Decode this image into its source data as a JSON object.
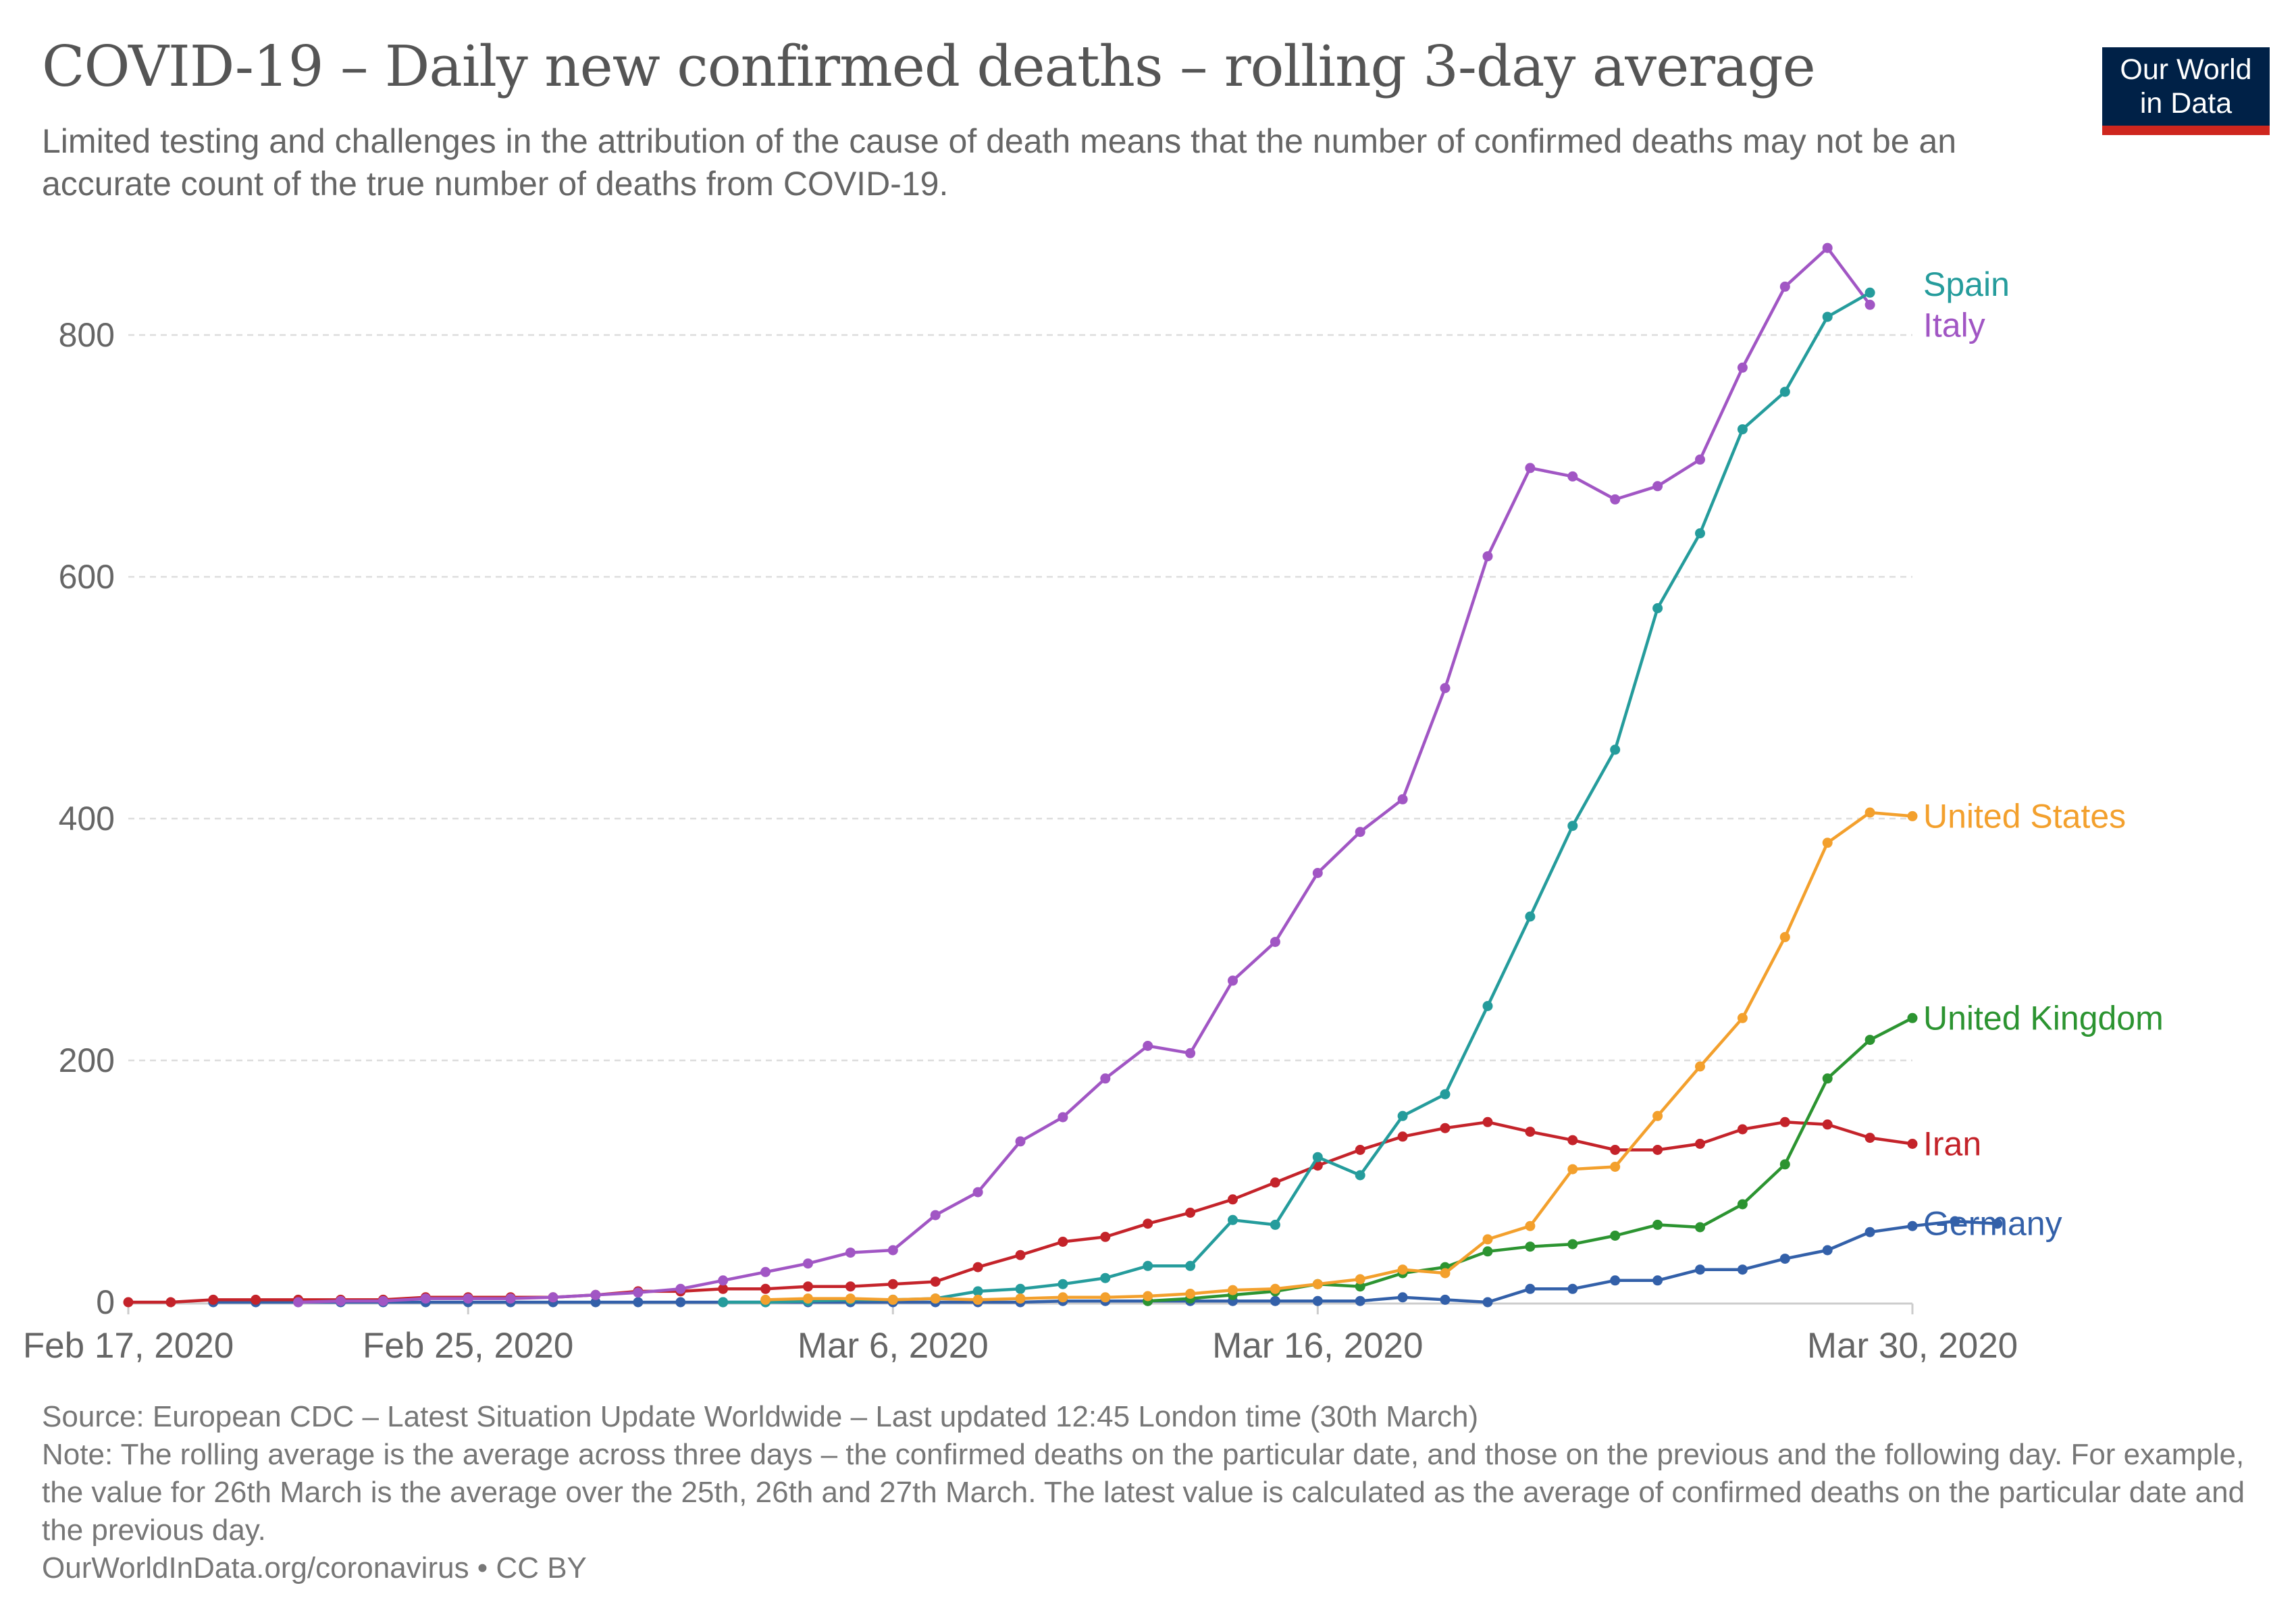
{
  "header": {
    "title": "COVID-19 – Daily new confirmed deaths – rolling 3-day average",
    "subtitle": "Limited testing and challenges in the attribution of the cause of death means that the number of confirmed deaths may not be an accurate count of the true number of deaths from COVID-19."
  },
  "logo": {
    "line1": "Our World",
    "line2": "in Data",
    "bg_color": "#002147",
    "accent_color": "#ce261e"
  },
  "footer": {
    "source": "Source: European CDC – Latest Situation Update Worldwide – Last updated 12:45 London time (30th March)",
    "note": "Note: The rolling average is the average across three days – the confirmed deaths on the particular date, and those on the previous and the following day. For example, the value for 26th March is the average over the 25th, 26th and 27th March. The latest value is calculated as the average of confirmed deaths on the particular date and the previous day.",
    "link": "OurWorldInData.org/coronavirus • CC BY"
  },
  "chart_data": {
    "type": "line",
    "x_start": "2020-02-17",
    "x_end": "2020-03-30",
    "x_ticks": [
      {
        "date": "2020-02-17",
        "label": "Feb 17, 2020"
      },
      {
        "date": "2020-02-25",
        "label": "Feb 25, 2020"
      },
      {
        "date": "2020-03-06",
        "label": "Mar 6, 2020"
      },
      {
        "date": "2020-03-16",
        "label": "Mar 16, 2020"
      },
      {
        "date": "2020-03-30",
        "label": "Mar 30, 2020"
      }
    ],
    "y_ticks": [
      0,
      200,
      400,
      600,
      800
    ],
    "ylim": [
      0,
      870
    ],
    "grid": true,
    "series": [
      {
        "name": "Germany",
        "color": "#3360a9",
        "points": [
          [
            "2020-02-19",
            0
          ],
          [
            "2020-02-20",
            0
          ],
          [
            "2020-02-21",
            0
          ],
          [
            "2020-02-22",
            0
          ],
          [
            "2020-02-23",
            0
          ],
          [
            "2020-02-24",
            0
          ],
          [
            "2020-02-25",
            0
          ],
          [
            "2020-02-26",
            0
          ],
          [
            "2020-02-27",
            0
          ],
          [
            "2020-02-28",
            0
          ],
          [
            "2020-02-29",
            0
          ],
          [
            "2020-03-01",
            0
          ],
          [
            "2020-03-02",
            0
          ],
          [
            "2020-03-03",
            0
          ],
          [
            "2020-03-04",
            0
          ],
          [
            "2020-03-05",
            0
          ],
          [
            "2020-03-06",
            0
          ],
          [
            "2020-03-07",
            0
          ],
          [
            "2020-03-08",
            0
          ],
          [
            "2020-03-09",
            0
          ],
          [
            "2020-03-10",
            1
          ],
          [
            "2020-03-11",
            1
          ],
          [
            "2020-03-12",
            1
          ],
          [
            "2020-03-13",
            1
          ],
          [
            "2020-03-14",
            1
          ],
          [
            "2020-03-15",
            1
          ],
          [
            "2020-03-16",
            1
          ],
          [
            "2020-03-17",
            1
          ],
          [
            "2020-03-18",
            4
          ],
          [
            "2020-03-19",
            2
          ],
          [
            "2020-03-20",
            0
          ],
          [
            "2020-03-21",
            11
          ],
          [
            "2020-03-22",
            11
          ],
          [
            "2020-03-23",
            18
          ],
          [
            "2020-03-24",
            18
          ],
          [
            "2020-03-25",
            27
          ],
          [
            "2020-03-26",
            27
          ],
          [
            "2020-03-27",
            36
          ],
          [
            "2020-03-28",
            43
          ],
          [
            "2020-03-29",
            58
          ],
          [
            "2020-03-30",
            63
          ],
          [
            "2020-03-31",
            67
          ],
          [
            "2020-04-01",
            65
          ]
        ]
      },
      {
        "name": "Iran",
        "color": "#c4232a",
        "points": [
          [
            "2020-02-17",
            0
          ],
          [
            "2020-02-18",
            0
          ],
          [
            "2020-02-19",
            2
          ],
          [
            "2020-02-20",
            2
          ],
          [
            "2020-02-21",
            2
          ],
          [
            "2020-02-22",
            2
          ],
          [
            "2020-02-23",
            2
          ],
          [
            "2020-02-24",
            4
          ],
          [
            "2020-02-25",
            4
          ],
          [
            "2020-02-26",
            4
          ],
          [
            "2020-02-27",
            4
          ],
          [
            "2020-02-28",
            6
          ],
          [
            "2020-02-29",
            9
          ],
          [
            "2020-03-01",
            9
          ],
          [
            "2020-03-02",
            11
          ],
          [
            "2020-03-03",
            11
          ],
          [
            "2020-03-04",
            13
          ],
          [
            "2020-03-05",
            13
          ],
          [
            "2020-03-06",
            15
          ],
          [
            "2020-03-07",
            17
          ],
          [
            "2020-03-08",
            29
          ],
          [
            "2020-03-09",
            39
          ],
          [
            "2020-03-10",
            50
          ],
          [
            "2020-03-11",
            54
          ],
          [
            "2020-03-12",
            65
          ],
          [
            "2020-03-13",
            74
          ],
          [
            "2020-03-14",
            85
          ],
          [
            "2020-03-15",
            99
          ],
          [
            "2020-03-16",
            113
          ],
          [
            "2020-03-17",
            126
          ],
          [
            "2020-03-18",
            137
          ],
          [
            "2020-03-19",
            144
          ],
          [
            "2020-03-20",
            149
          ],
          [
            "2020-03-21",
            141
          ],
          [
            "2020-03-22",
            134
          ],
          [
            "2020-03-23",
            126
          ],
          [
            "2020-03-24",
            126
          ],
          [
            "2020-03-25",
            131
          ],
          [
            "2020-03-26",
            143
          ],
          [
            "2020-03-27",
            149
          ],
          [
            "2020-03-28",
            147
          ],
          [
            "2020-03-29",
            136
          ],
          [
            "2020-03-30",
            131
          ]
        ]
      },
      {
        "name": "Italy",
        "color": "#a156c4",
        "points": [
          [
            "2020-02-21",
            0
          ],
          [
            "2020-02-22",
            1
          ],
          [
            "2020-02-23",
            1
          ],
          [
            "2020-02-24",
            3
          ],
          [
            "2020-02-25",
            3
          ],
          [
            "2020-02-26",
            3
          ],
          [
            "2020-02-27",
            4
          ],
          [
            "2020-02-28",
            6
          ],
          [
            "2020-02-29",
            8
          ],
          [
            "2020-03-01",
            11
          ],
          [
            "2020-03-02",
            18
          ],
          [
            "2020-03-03",
            25
          ],
          [
            "2020-03-04",
            32
          ],
          [
            "2020-03-05",
            41
          ],
          [
            "2020-03-06",
            43
          ],
          [
            "2020-03-07",
            72
          ],
          [
            "2020-03-08",
            91
          ],
          [
            "2020-03-09",
            133
          ],
          [
            "2020-03-10",
            153
          ],
          [
            "2020-03-11",
            185
          ],
          [
            "2020-03-12",
            212
          ],
          [
            "2020-03-13",
            206
          ],
          [
            "2020-03-14",
            266
          ],
          [
            "2020-03-15",
            298
          ],
          [
            "2020-03-16",
            355
          ],
          [
            "2020-03-17",
            389
          ],
          [
            "2020-03-18",
            416
          ],
          [
            "2020-03-19",
            508
          ],
          [
            "2020-03-20",
            617
          ],
          [
            "2020-03-21",
            690
          ],
          [
            "2020-03-22",
            683
          ],
          [
            "2020-03-23",
            664
          ],
          [
            "2020-03-24",
            675
          ],
          [
            "2020-03-25",
            697
          ],
          [
            "2020-03-26",
            773
          ],
          [
            "2020-03-27",
            840
          ],
          [
            "2020-03-28",
            872
          ],
          [
            "2020-03-29",
            825
          ]
        ]
      },
      {
        "name": "Spain",
        "color": "#259c9c",
        "points": [
          [
            "2020-03-02",
            0
          ],
          [
            "2020-03-03",
            0
          ],
          [
            "2020-03-04",
            1
          ],
          [
            "2020-03-05",
            2
          ],
          [
            "2020-03-06",
            2
          ],
          [
            "2020-03-07",
            3
          ],
          [
            "2020-03-08",
            9
          ],
          [
            "2020-03-09",
            11
          ],
          [
            "2020-03-10",
            15
          ],
          [
            "2020-03-11",
            20
          ],
          [
            "2020-03-12",
            30
          ],
          [
            "2020-03-13",
            30
          ],
          [
            "2020-03-14",
            68
          ],
          [
            "2020-03-15",
            64
          ],
          [
            "2020-03-16",
            120
          ],
          [
            "2020-03-17",
            105
          ],
          [
            "2020-03-18",
            154
          ],
          [
            "2020-03-19",
            172
          ],
          [
            "2020-03-20",
            245
          ],
          [
            "2020-03-21",
            319
          ],
          [
            "2020-03-22",
            394
          ],
          [
            "2020-03-23",
            457
          ],
          [
            "2020-03-24",
            574
          ],
          [
            "2020-03-25",
            636
          ],
          [
            "2020-03-26",
            722
          ],
          [
            "2020-03-27",
            753
          ],
          [
            "2020-03-28",
            815
          ],
          [
            "2020-03-29",
            835
          ]
        ]
      },
      {
        "name": "United Kingdom",
        "color": "#2c9431",
        "points": [
          [
            "2020-03-12",
            1
          ],
          [
            "2020-03-13",
            3
          ],
          [
            "2020-03-14",
            6
          ],
          [
            "2020-03-15",
            9
          ],
          [
            "2020-03-16",
            15
          ],
          [
            "2020-03-17",
            13
          ],
          [
            "2020-03-18",
            24
          ],
          [
            "2020-03-19",
            29
          ],
          [
            "2020-03-20",
            42
          ],
          [
            "2020-03-21",
            46
          ],
          [
            "2020-03-22",
            48
          ],
          [
            "2020-03-23",
            55
          ],
          [
            "2020-03-24",
            64
          ],
          [
            "2020-03-25",
            62
          ],
          [
            "2020-03-26",
            81
          ],
          [
            "2020-03-27",
            114
          ],
          [
            "2020-03-28",
            185
          ],
          [
            "2020-03-29",
            217
          ],
          [
            "2020-03-30",
            235
          ]
        ]
      },
      {
        "name": "United States",
        "color": "#f3a02d",
        "points": [
          [
            "2020-03-03",
            2
          ],
          [
            "2020-03-04",
            3
          ],
          [
            "2020-03-05",
            3
          ],
          [
            "2020-03-06",
            2
          ],
          [
            "2020-03-07",
            3
          ],
          [
            "2020-03-08",
            2
          ],
          [
            "2020-03-09",
            3
          ],
          [
            "2020-03-10",
            4
          ],
          [
            "2020-03-11",
            4
          ],
          [
            "2020-03-12",
            5
          ],
          [
            "2020-03-13",
            7
          ],
          [
            "2020-03-14",
            10
          ],
          [
            "2020-03-15",
            11
          ],
          [
            "2020-03-16",
            15
          ],
          [
            "2020-03-17",
            19
          ],
          [
            "2020-03-18",
            27
          ],
          [
            "2020-03-19",
            24
          ],
          [
            "2020-03-20",
            52
          ],
          [
            "2020-03-21",
            63
          ],
          [
            "2020-03-22",
            110
          ],
          [
            "2020-03-23",
            112
          ],
          [
            "2020-03-24",
            154
          ],
          [
            "2020-03-25",
            195
          ],
          [
            "2020-03-26",
            235
          ],
          [
            "2020-03-27",
            302
          ],
          [
            "2020-03-28",
            380
          ],
          [
            "2020-03-29",
            405
          ],
          [
            "2020-03-30",
            402
          ]
        ]
      }
    ],
    "end_labels": [
      {
        "name": "Spain",
        "y": 842
      },
      {
        "name": "Italy",
        "y": 808
      },
      {
        "name": "United States",
        "y": 402
      },
      {
        "name": "United Kingdom",
        "y": 235
      },
      {
        "name": "Iran",
        "y": 131
      },
      {
        "name": "Germany",
        "y": 65
      }
    ]
  }
}
